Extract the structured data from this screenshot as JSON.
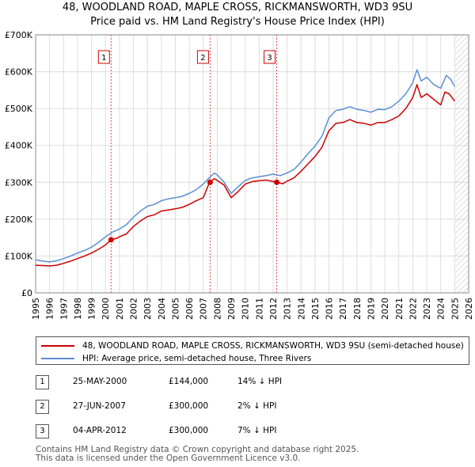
{
  "title_line1": "48, WOODLAND ROAD, MAPLE CROSS, RICKMANSWORTH, WD3 9SU",
  "title_line2": "Price paid vs. HM Land Registry's House Price Index (HPI)",
  "colors": {
    "price": "#cc0000",
    "hpi": "#5b8fd4",
    "grid": "#dddddd",
    "marker": "#cc0000"
  },
  "chart_data": {
    "type": "line",
    "title": "48, WOODLAND ROAD, MAPLE CROSS, RICKMANSWORTH, WD3 9SU",
    "subtitle": "Price paid vs. HM Land Registry's House Price Index (HPI)",
    "xlabel": "",
    "ylabel": "",
    "xlim": [
      1995,
      2026
    ],
    "ylim": [
      0,
      700000
    ],
    "grid": true,
    "x_ticks": [
      "1995",
      "1996",
      "1997",
      "1998",
      "1999",
      "2000",
      "2001",
      "2002",
      "2003",
      "2004",
      "2005",
      "2006",
      "2007",
      "2008",
      "2009",
      "2010",
      "2011",
      "2012",
      "2013",
      "2014",
      "2015",
      "2016",
      "2017",
      "2018",
      "2019",
      "2020",
      "2021",
      "2022",
      "2023",
      "2024",
      "2025",
      "2026"
    ],
    "y_ticks": [
      {
        "value": 0,
        "label": "£0"
      },
      {
        "value": 100000,
        "label": "£100K"
      },
      {
        "value": 200000,
        "label": "£200K"
      },
      {
        "value": 300000,
        "label": "£300K"
      },
      {
        "value": 400000,
        "label": "£400K"
      },
      {
        "value": 500000,
        "label": "£500K"
      },
      {
        "value": 600000,
        "label": "£600K"
      },
      {
        "value": 700000,
        "label": "£700K"
      }
    ],
    "series": [
      {
        "name": "48, WOODLAND ROAD, MAPLE CROSS, RICKMANSWORTH, WD3 9SU (semi-detached house)",
        "color": "#cc0000",
        "points": [
          [
            1995,
            75000
          ],
          [
            1995.5,
            74000
          ],
          [
            1996,
            73000
          ],
          [
            1996.5,
            75000
          ],
          [
            1997,
            80000
          ],
          [
            1997.5,
            86000
          ],
          [
            1998,
            93000
          ],
          [
            1998.5,
            100000
          ],
          [
            1999,
            108000
          ],
          [
            1999.5,
            118000
          ],
          [
            2000,
            130000
          ],
          [
            2000.4,
            144000
          ],
          [
            2000.8,
            148000
          ],
          [
            2001,
            152000
          ],
          [
            2001.5,
            160000
          ],
          [
            2002,
            180000
          ],
          [
            2002.5,
            195000
          ],
          [
            2003,
            207000
          ],
          [
            2003.5,
            212000
          ],
          [
            2004,
            222000
          ],
          [
            2004.5,
            225000
          ],
          [
            2005,
            228000
          ],
          [
            2005.5,
            232000
          ],
          [
            2006,
            240000
          ],
          [
            2006.5,
            250000
          ],
          [
            2007,
            258000
          ],
          [
            2007.45,
            300000
          ],
          [
            2007.8,
            310000
          ],
          [
            2008,
            305000
          ],
          [
            2008.5,
            292000
          ],
          [
            2009,
            258000
          ],
          [
            2009.5,
            275000
          ],
          [
            2010,
            295000
          ],
          [
            2010.5,
            302000
          ],
          [
            2011,
            304000
          ],
          [
            2011.5,
            306000
          ],
          [
            2012,
            302000
          ],
          [
            2012.26,
            300000
          ],
          [
            2012.7,
            296000
          ],
          [
            2013,
            303000
          ],
          [
            2013.5,
            312000
          ],
          [
            2014,
            330000
          ],
          [
            2014.5,
            350000
          ],
          [
            2015,
            370000
          ],
          [
            2015.5,
            395000
          ],
          [
            2016,
            440000
          ],
          [
            2016.5,
            460000
          ],
          [
            2017,
            462000
          ],
          [
            2017.5,
            470000
          ],
          [
            2018,
            462000
          ],
          [
            2018.5,
            460000
          ],
          [
            2019,
            455000
          ],
          [
            2019.5,
            462000
          ],
          [
            2020,
            462000
          ],
          [
            2020.5,
            470000
          ],
          [
            2021,
            480000
          ],
          [
            2021.5,
            500000
          ],
          [
            2022,
            530000
          ],
          [
            2022.3,
            565000
          ],
          [
            2022.6,
            530000
          ],
          [
            2023,
            540000
          ],
          [
            2023.5,
            525000
          ],
          [
            2024,
            510000
          ],
          [
            2024.3,
            545000
          ],
          [
            2024.6,
            540000
          ],
          [
            2025,
            520000
          ]
        ]
      },
      {
        "name": "HPI: Average price, semi-detached house, Three Rivers",
        "color": "#5b8fd4",
        "points": [
          [
            1995,
            90000
          ],
          [
            1995.5,
            86000
          ],
          [
            1996,
            84000
          ],
          [
            1996.5,
            87000
          ],
          [
            1997,
            93000
          ],
          [
            1997.5,
            100000
          ],
          [
            1998,
            108000
          ],
          [
            1998.5,
            115000
          ],
          [
            1999,
            124000
          ],
          [
            1999.5,
            137000
          ],
          [
            2000,
            152000
          ],
          [
            2000.5,
            165000
          ],
          [
            2001,
            173000
          ],
          [
            2001.5,
            185000
          ],
          [
            2002,
            205000
          ],
          [
            2002.5,
            222000
          ],
          [
            2003,
            235000
          ],
          [
            2003.5,
            240000
          ],
          [
            2004,
            250000
          ],
          [
            2004.5,
            255000
          ],
          [
            2005,
            258000
          ],
          [
            2005.5,
            262000
          ],
          [
            2006,
            270000
          ],
          [
            2006.5,
            280000
          ],
          [
            2007,
            295000
          ],
          [
            2007.5,
            315000
          ],
          [
            2007.8,
            325000
          ],
          [
            2008,
            320000
          ],
          [
            2008.5,
            300000
          ],
          [
            2009,
            270000
          ],
          [
            2009.5,
            288000
          ],
          [
            2010,
            305000
          ],
          [
            2010.5,
            312000
          ],
          [
            2011,
            315000
          ],
          [
            2011.5,
            318000
          ],
          [
            2012,
            322000
          ],
          [
            2012.5,
            318000
          ],
          [
            2013,
            325000
          ],
          [
            2013.5,
            335000
          ],
          [
            2014,
            355000
          ],
          [
            2014.5,
            378000
          ],
          [
            2015,
            398000
          ],
          [
            2015.5,
            425000
          ],
          [
            2016,
            475000
          ],
          [
            2016.5,
            495000
          ],
          [
            2017,
            498000
          ],
          [
            2017.5,
            505000
          ],
          [
            2018,
            498000
          ],
          [
            2018.5,
            495000
          ],
          [
            2019,
            490000
          ],
          [
            2019.5,
            498000
          ],
          [
            2020,
            497000
          ],
          [
            2020.5,
            505000
          ],
          [
            2021,
            520000
          ],
          [
            2021.5,
            540000
          ],
          [
            2022,
            570000
          ],
          [
            2022.3,
            605000
          ],
          [
            2022.6,
            575000
          ],
          [
            2023,
            585000
          ],
          [
            2023.5,
            565000
          ],
          [
            2024,
            555000
          ],
          [
            2024.4,
            590000
          ],
          [
            2024.7,
            580000
          ],
          [
            2025,
            560000
          ]
        ]
      }
    ],
    "sales": [
      {
        "label": "1",
        "x": 2000.4,
        "price": 144000
      },
      {
        "label": "2",
        "x": 2007.49,
        "price": 300000
      },
      {
        "label": "3",
        "x": 2012.26,
        "price": 300000
      }
    ]
  },
  "legend": {
    "price_label": "48, WOODLAND ROAD, MAPLE CROSS, RICKMANSWORTH, WD3 9SU (semi-detached house)",
    "hpi_label": "HPI: Average price, semi-detached house, Three Rivers"
  },
  "transactions": [
    {
      "num": "1",
      "date": "25-MAY-2000",
      "price": "£144,000",
      "hpi": "14% ↓ HPI"
    },
    {
      "num": "2",
      "date": "27-JUN-2007",
      "price": "£300,000",
      "hpi": "2% ↓ HPI"
    },
    {
      "num": "3",
      "date": "04-APR-2012",
      "price": "£300,000",
      "hpi": "7% ↓ HPI"
    }
  ],
  "footer_line1": "Contains HM Land Registry data © Crown copyright and database right 2025.",
  "footer_line2": "This data is licensed under the Open Government Licence v3.0."
}
